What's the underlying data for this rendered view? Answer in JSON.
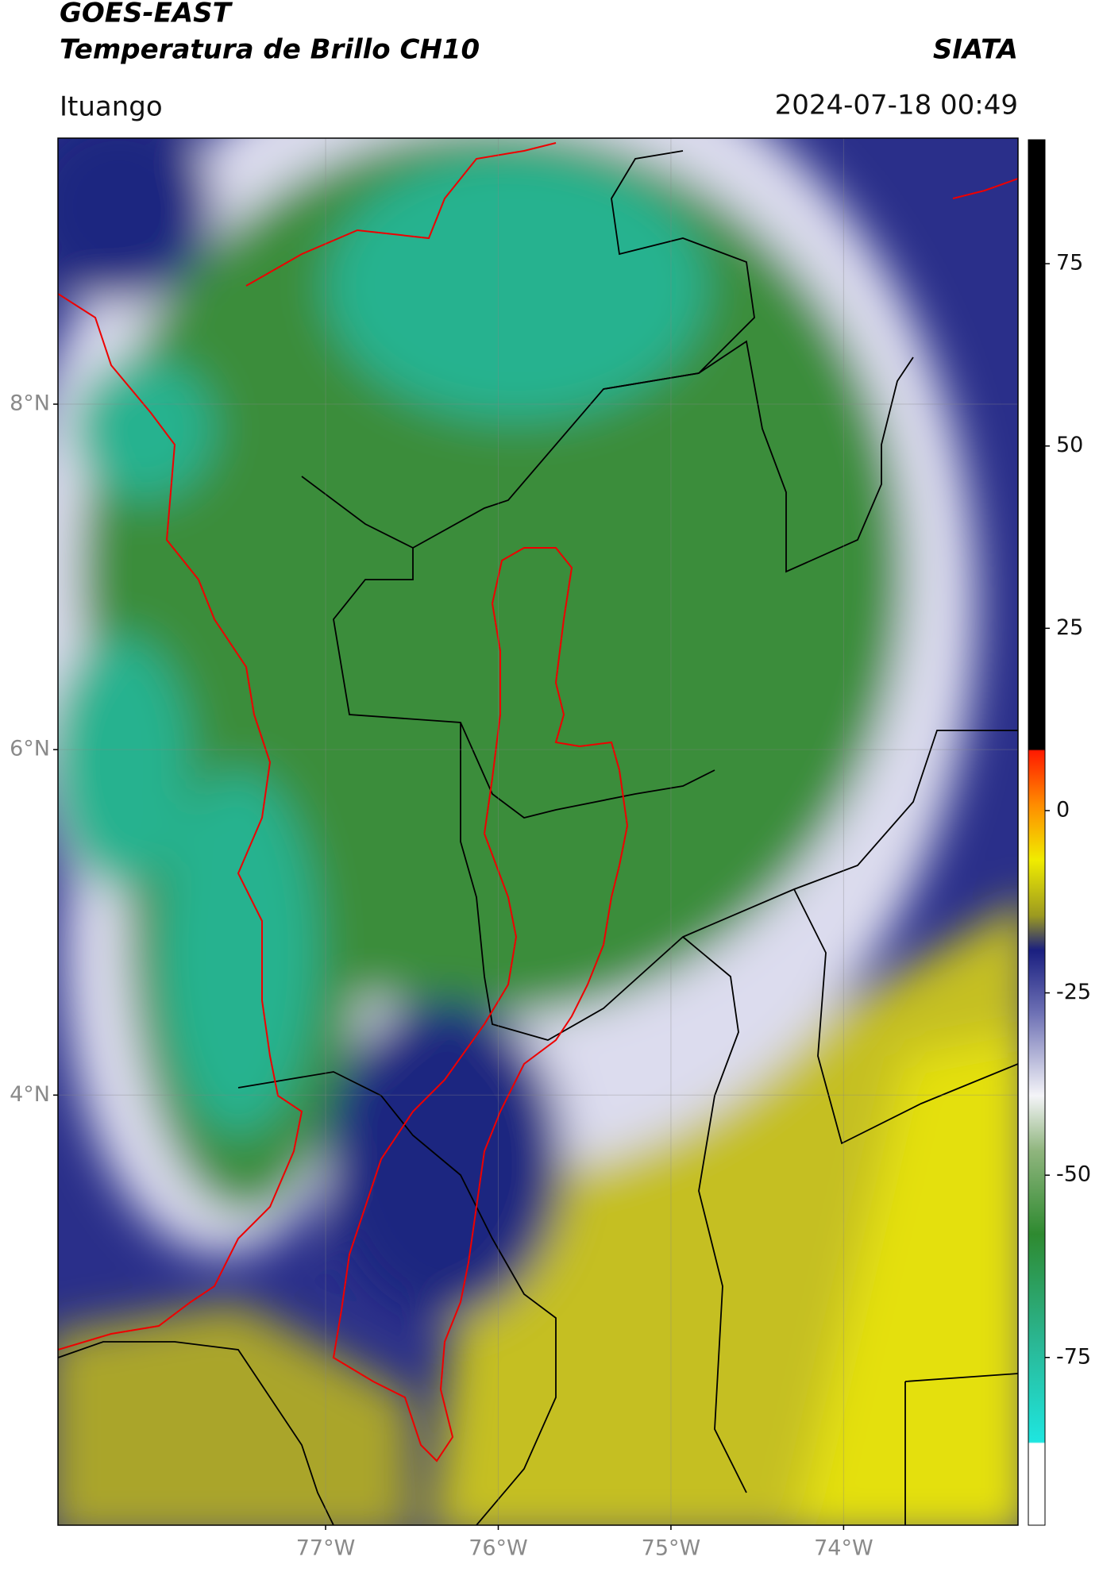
{
  "header": {
    "title": "GOES-EAST",
    "subtitle": "Temperatura de Brillo CH10",
    "agency": "SIATA",
    "location": "Ituango",
    "datetime": "2024-07-18 00:49"
  },
  "map": {
    "lat_range": [
      1.51,
      9.54
    ],
    "lon_range": [
      -78.55,
      -72.99
    ],
    "lat_ticks": [
      {
        "value": 8,
        "label": "8°N"
      },
      {
        "value": 6,
        "label": "6°N"
      },
      {
        "value": 4,
        "label": "4°N"
      }
    ],
    "lon_ticks": [
      {
        "value": -77,
        "label": "77°W"
      },
      {
        "value": -76,
        "label": "76°W"
      },
      {
        "value": -75,
        "label": "75°W"
      },
      {
        "value": -74,
        "label": "74°W"
      }
    ]
  },
  "colorbar": {
    "range": [
      -98,
      92
    ],
    "ticks": [
      75,
      50,
      25,
      0,
      -25,
      -50,
      -75
    ]
  }
}
